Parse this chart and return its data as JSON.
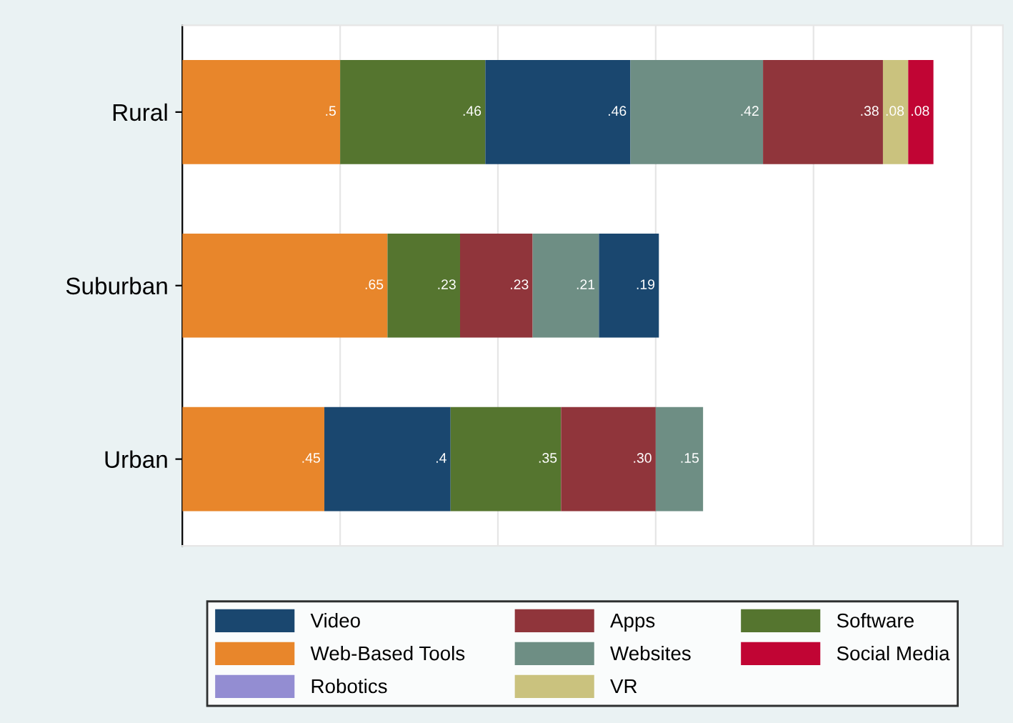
{
  "chart_data": {
    "type": "bar",
    "orientation": "horizontal",
    "stacked": true,
    "categories": [
      "Rural",
      "Suburban",
      "Urban"
    ],
    "series": [
      {
        "colors": [
          "#e8862b",
          "#e8862b",
          "#e8862b"
        ],
        "values": [
          0.5,
          0.65,
          0.45
        ],
        "value_labels": [
          ".5",
          ".65",
          ".45"
        ]
      },
      {
        "colors": [
          "#55752f",
          "#55752f",
          "#1a476f"
        ],
        "values": [
          0.46,
          0.23,
          0.4
        ],
        "value_labels": [
          ".46",
          ".23",
          ".4"
        ]
      },
      {
        "colors": [
          "#1a476f",
          "#90353b",
          "#55752f"
        ],
        "values": [
          0.46,
          0.23,
          0.35
        ],
        "value_labels": [
          ".46",
          ".23",
          ".35"
        ]
      },
      {
        "colors": [
          "#6e8e84",
          "#6e8e84",
          "#90353b"
        ],
        "values": [
          0.42,
          0.21,
          0.3
        ],
        "value_labels": [
          ".42",
          ".21",
          ".30"
        ]
      },
      {
        "colors": [
          "#90353b",
          "#1a476f",
          "#6e8e84"
        ],
        "values": [
          0.38,
          0.19,
          0.15
        ],
        "value_labels": [
          ".38",
          ".19",
          ".15"
        ]
      },
      {
        "colors": [
          "#cac27e",
          null,
          null
        ],
        "values": [
          0.08,
          null,
          null
        ],
        "value_labels": [
          ".08",
          null,
          null
        ]
      },
      {
        "colors": [
          "#c10534",
          null,
          null
        ],
        "values": [
          0.08,
          null,
          null
        ],
        "value_labels": [
          ".08",
          null,
          null
        ]
      },
      {
        "name": "Video",
        "color": "#1a476f",
        "values": [
          null,
          null,
          null
        ]
      },
      {
        "name": "Web-Based Tools",
        "color": "#e8862b",
        "values": [
          null,
          null,
          null
        ]
      },
      {
        "name": "Robotics",
        "color": "#938dd2",
        "values": [
          null,
          null,
          null
        ]
      },
      {
        "name": "Apps",
        "color": "#90353b",
        "values": [
          null,
          null,
          null
        ]
      },
      {
        "name": "Websites",
        "color": "#6e8e84",
        "values": [
          null,
          null,
          null
        ]
      },
      {
        "name": "VR",
        "color": "#cac27e",
        "values": [
          null,
          null,
          null
        ]
      },
      {
        "name": "Software",
        "color": "#55752f",
        "values": [
          null,
          null,
          null
        ]
      },
      {
        "name": "Social Media",
        "color": "#c10534",
        "values": [
          null,
          null,
          null
        ]
      }
    ],
    "xlim": [
      0,
      2.6
    ],
    "xticks": [
      {
        "value": 0.5,
        "label": null
      },
      {
        "value": 1,
        "label": null
      },
      {
        "value": 1.5,
        "label": null
      },
      {
        "value": 2,
        "label": null
      },
      {
        "value": 2.5,
        "label": null
      }
    ],
    "tick_labels": "y",
    "grid": "x",
    "legend": "bottom"
  }
}
